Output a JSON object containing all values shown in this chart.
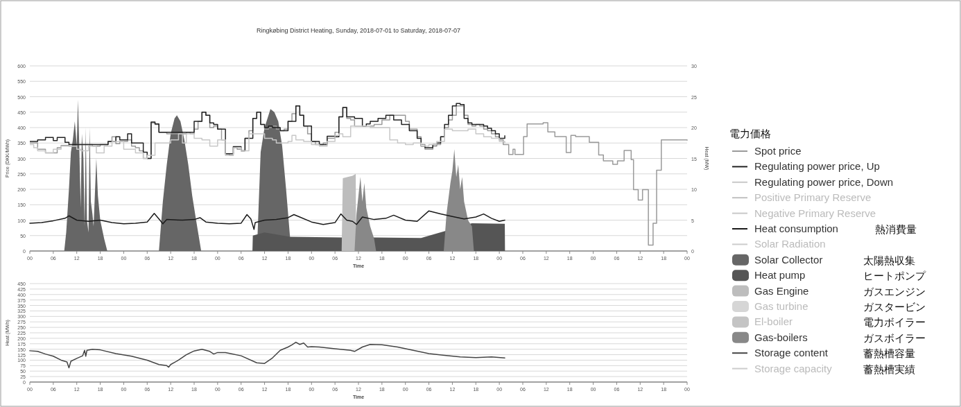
{
  "chart_data": [
    {
      "type": "line",
      "title": "Ringkøbing District Heating, Sunday, 2018-07-01 to Saturday, 2018-07-07",
      "xlabel": "Time",
      "ylabel": "Price (DKK/MWh)",
      "y2label": "Heat (MW)",
      "xlim": [
        0,
        168
      ],
      "xticks": [
        {
          "value": 0,
          "label": "00"
        },
        {
          "value": 6,
          "label": "06"
        },
        {
          "value": 12,
          "label": "12"
        },
        {
          "value": 18,
          "label": "18"
        },
        {
          "value": 24,
          "label": "00"
        },
        {
          "value": 30,
          "label": "06"
        },
        {
          "value": 36,
          "label": "12"
        },
        {
          "value": 42,
          "label": "18"
        },
        {
          "value": 48,
          "label": "00"
        },
        {
          "value": 54,
          "label": "06"
        },
        {
          "value": 60,
          "label": "12"
        },
        {
          "value": 66,
          "label": "18"
        },
        {
          "value": 72,
          "label": "00"
        },
        {
          "value": 78,
          "label": "06"
        },
        {
          "value": 84,
          "label": "12"
        },
        {
          "value": 90,
          "label": "18"
        },
        {
          "value": 96,
          "label": "00"
        },
        {
          "value": 102,
          "label": "06"
        },
        {
          "value": 108,
          "label": "12"
        },
        {
          "value": 114,
          "label": "18"
        },
        {
          "value": 120,
          "label": "00"
        },
        {
          "value": 126,
          "label": "06"
        },
        {
          "value": 132,
          "label": "12"
        },
        {
          "value": 138,
          "label": "18"
        },
        {
          "value": 144,
          "label": "00"
        },
        {
          "value": 150,
          "label": "06"
        },
        {
          "value": 156,
          "label": "12"
        },
        {
          "value": 162,
          "label": "18"
        },
        {
          "value": 168,
          "label": "00"
        }
      ],
      "ylim": [
        0,
        600
      ],
      "yticks": [
        0,
        50,
        100,
        150,
        200,
        250,
        300,
        350,
        400,
        450,
        500,
        550,
        600
      ],
      "y2lim": [
        0,
        30
      ],
      "y2ticks": [
        0,
        5,
        10,
        15,
        20,
        25,
        30
      ],
      "grid": "y",
      "legend": "right",
      "legend_title": "電力価格",
      "annotations": [
        "熱消費量",
        "太陽熱収集",
        "ヒートポンプ",
        "ガスエンジン",
        "ガスタービン",
        "電力ボイラー",
        "ガスボイラー"
      ],
      "series": [
        {
          "name": "Spot price",
          "type": "step",
          "color": "#9a9a9a",
          "x": [
            0,
            2,
            4,
            6,
            7,
            8,
            10,
            12,
            14,
            16,
            18,
            20,
            21,
            22,
            23,
            25,
            26,
            27,
            28,
            29,
            30,
            31,
            32,
            33,
            35,
            38,
            40,
            41,
            42,
            43,
            44,
            45,
            46,
            47,
            48,
            49,
            50,
            51,
            52,
            53,
            54,
            55,
            56,
            57,
            58,
            59,
            60,
            61,
            62,
            63,
            64,
            65,
            66,
            67,
            68,
            69,
            70,
            71,
            72,
            73,
            74,
            75,
            76,
            77,
            78,
            79,
            80,
            81,
            82,
            83,
            84,
            88,
            90,
            92,
            94,
            96,
            97,
            99,
            100,
            101,
            103,
            104,
            105,
            106,
            107,
            108,
            109,
            110,
            111,
            112,
            113,
            114,
            115,
            116,
            117,
            118,
            119,
            120,
            121,
            122.4,
            123.5,
            124,
            126.2,
            127.1,
            131.2,
            132.4,
            134.2,
            137.1,
            138.3,
            139.5,
            143,
            145.4,
            146.6,
            149,
            150.2,
            151.9,
            153.7,
            154.3,
            155.5,
            156.6,
            158.1,
            159.3,
            160.2,
            161.4,
            168
          ],
          "values": [
            350,
            330,
            318,
            318,
            335,
            342,
            340,
            345,
            345,
            340,
            345,
            355,
            370,
            348,
            355,
            360,
            340,
            335,
            325,
            300,
            300,
            415,
            410,
            385,
            380,
            380,
            385,
            380,
            395,
            420,
            450,
            440,
            400,
            405,
            395,
            360,
            315,
            310,
            335,
            330,
            325,
            365,
            390,
            430,
            450,
            410,
            395,
            400,
            405,
            395,
            390,
            395,
            420,
            445,
            470,
            440,
            405,
            380,
            355,
            345,
            345,
            350,
            365,
            365,
            385,
            435,
            465,
            430,
            425,
            405,
            405,
            410,
            425,
            440,
            440,
            420,
            395,
            370,
            345,
            330,
            340,
            345,
            370,
            400,
            425,
            440,
            470,
            470,
            440,
            410,
            405,
            410,
            405,
            395,
            390,
            380,
            370,
            360,
            345,
            313,
            330,
            313,
            371,
            412,
            416,
            386,
            371,
            319,
            375,
            371,
            352,
            311,
            292,
            281,
            292,
            326,
            296,
            199,
            165,
            199,
            19,
            90,
            262,
            360,
            358
          ]
        },
        {
          "name": "Regulating power price, Up",
          "type": "step",
          "color": "#222222",
          "x": [
            0,
            2,
            4,
            6,
            7,
            9,
            10,
            12,
            16,
            20,
            22,
            23,
            25,
            26,
            29,
            30,
            31,
            32,
            33,
            36,
            40,
            42,
            44,
            45,
            46,
            47,
            48,
            50,
            52,
            54,
            55,
            57,
            58,
            59,
            60,
            61,
            62,
            64,
            66,
            68,
            69,
            70,
            72,
            74,
            76,
            78,
            79,
            80,
            81,
            83,
            85,
            86,
            87,
            89,
            91,
            93,
            95,
            97,
            99,
            100,
            101,
            103,
            104,
            105,
            106,
            107,
            108,
            109,
            110,
            111,
            112,
            113,
            115,
            116,
            117,
            118,
            119,
            120,
            121.4
          ],
          "values": [
            355,
            360,
            368,
            358,
            368,
            352,
            345,
            345,
            345,
            355,
            370,
            360,
            380,
            350,
            320,
            300,
            418,
            412,
            385,
            385,
            385,
            420,
            450,
            440,
            415,
            410,
            395,
            315,
            338,
            325,
            365,
            430,
            450,
            410,
            400,
            405,
            400,
            390,
            420,
            470,
            440,
            405,
            355,
            345,
            372,
            370,
            435,
            465,
            435,
            430,
            405,
            412,
            420,
            430,
            440,
            425,
            410,
            390,
            365,
            340,
            335,
            345,
            350,
            370,
            410,
            440,
            470,
            478,
            475,
            430,
            415,
            410,
            410,
            405,
            398,
            390,
            380,
            365,
            375
          ]
        },
        {
          "name": "Regulating power price, Down",
          "type": "step",
          "color": "#c8c8c8",
          "x": [
            0,
            1,
            2,
            4,
            6,
            8,
            10,
            12,
            13,
            15,
            17,
            19,
            21,
            24,
            27,
            29,
            30,
            32,
            36,
            38,
            39,
            40,
            42,
            44,
            46,
            48,
            50,
            52,
            54,
            56,
            59,
            60,
            62,
            63,
            66,
            67,
            68,
            70,
            72,
            74,
            76,
            78,
            79,
            80,
            82,
            84,
            85,
            87,
            90,
            92,
            94,
            96,
            98,
            100,
            102,
            104,
            106,
            108,
            110,
            112,
            114,
            116,
            118,
            120,
            121.4
          ],
          "values": [
            345,
            335,
            325,
            318,
            330,
            340,
            340,
            330,
            325,
            340,
            318,
            340,
            355,
            330,
            318,
            300,
            310,
            350,
            360,
            380,
            350,
            380,
            365,
            360,
            340,
            360,
            310,
            335,
            325,
            380,
            380,
            365,
            360,
            350,
            355,
            375,
            360,
            355,
            345,
            340,
            355,
            375,
            380,
            370,
            405,
            405,
            405,
            400,
            400,
            360,
            350,
            345,
            350,
            340,
            345,
            355,
            395,
            390,
            390,
            395,
            380,
            370,
            365,
            355,
            350
          ]
        },
        {
          "name": "Positive Primary Reserve",
          "type": "line",
          "color": "#c0c0c0"
        },
        {
          "name": "Negative Primary Reserve",
          "type": "line",
          "color": "#c8c8c8"
        },
        {
          "name": "Heat consumption",
          "type": "line",
          "axis": "y2",
          "color": "#1a1a1a",
          "x": [
            0,
            3,
            6,
            9,
            10,
            12,
            15,
            18,
            21,
            24,
            27,
            30,
            31.8,
            33,
            34,
            35,
            39,
            42,
            43.5,
            45,
            48,
            51,
            54,
            55.5,
            56.5,
            57.3,
            57.6,
            60,
            63,
            66,
            67.5,
            69,
            72,
            75,
            78,
            79.5,
            81,
            82.5,
            83.5,
            85,
            88,
            91,
            93,
            96,
            99,
            102,
            105,
            108,
            111,
            114,
            116,
            118,
            120,
            121.4
          ],
          "values": [
            4.5,
            4.6,
            4.9,
            5.3,
            5.7,
            5.0,
            4.8,
            5.0,
            4.6,
            4.4,
            4.5,
            4.7,
            6.1,
            5.2,
            4.4,
            5.1,
            5.0,
            5.1,
            5.4,
            4.7,
            4.5,
            4.4,
            4.5,
            5.9,
            5.2,
            3.5,
            4.6,
            5.0,
            5.1,
            5.4,
            5.9,
            5.5,
            4.7,
            4.3,
            4.6,
            6.0,
            5.0,
            4.8,
            4.3,
            5.5,
            5.1,
            5.3,
            5.8,
            5.0,
            4.8,
            6.5,
            6.0,
            5.6,
            5.2,
            5.5,
            6.0,
            5.3,
            4.8,
            5.0
          ]
        },
        {
          "name": "Solar Radiation",
          "type": "line",
          "color": "#cccccc"
        },
        {
          "name": "Solar Collector",
          "type": "area",
          "axis": "y2",
          "color": "#666666",
          "x": [
            8.8,
            9.3,
            10,
            10.5,
            11,
            11.5,
            12,
            12.3,
            12.6,
            13,
            13.3,
            13.7,
            14,
            14.3,
            14.6,
            15,
            15.3,
            15.6,
            16,
            16.3,
            17,
            17.4,
            18,
            19,
            19.8,
            26,
            33,
            34,
            35,
            36,
            37,
            37.6,
            38.5,
            39.5,
            40.5,
            41.5,
            42.5,
            43.8,
            50,
            58.2,
            59,
            60,
            61,
            61.5,
            62.5,
            63.5,
            64.5,
            65.5,
            66.5
          ],
          "values": [
            0,
            3,
            10,
            16,
            18,
            21,
            17,
            24.5,
            18,
            7,
            19,
            15,
            4,
            20,
            5,
            3,
            20,
            8,
            6,
            4,
            15,
            9,
            5,
            2,
            0,
            null,
            0,
            8,
            14,
            19,
            21.5,
            22,
            21,
            18,
            14,
            9,
            5,
            0,
            null,
            2.5,
            16,
            20,
            22,
            23,
            22.5,
            21,
            17,
            10,
            2.3
          ]
        },
        {
          "name": "Heat pump",
          "type": "area",
          "axis": "y2",
          "color": "#555555",
          "x": [
            56.9,
            57,
            60,
            66.5,
            79.7,
            83.3,
            88,
            100,
            113,
            121.4,
            121.45
          ],
          "values": [
            0,
            2.5,
            3,
            2.3,
            2.2,
            2.2,
            2.2,
            2.1,
            4.5,
            4.4,
            0
          ]
        },
        {
          "name": "Gas Engine",
          "type": "area",
          "axis": "y2",
          "color": "#bdbdbd",
          "x": [
            79.7,
            80,
            82.5,
            83.3,
            83.4
          ],
          "values": [
            0,
            11.8,
            12.2,
            12.5,
            0
          ]
        },
        {
          "name": "Gas turbine",
          "type": "area",
          "axis": "y2",
          "color": "#d6d6d6"
        },
        {
          "name": "El-boiler",
          "type": "area",
          "axis": "y2",
          "color": "#c4c4c4"
        },
        {
          "name": "Gas-boilers",
          "type": "area",
          "axis": "y2",
          "color": "#888888",
          "x": [
            83,
            83.5,
            84,
            84.5,
            85,
            85.5,
            86,
            87,
            88,
            88.5,
            95,
            105.8,
            106.5,
            107.5,
            108,
            108.5,
            109,
            109.5,
            110,
            110.5,
            111,
            112,
            113,
            113.5
          ],
          "values": [
            0,
            6,
            9,
            12,
            8,
            11,
            7,
            4,
            2,
            0,
            null,
            0,
            6,
            11,
            13,
            16.5,
            12,
            14,
            10,
            12,
            8,
            5,
            4,
            0
          ]
        }
      ]
    },
    {
      "type": "line",
      "xlabel": "Time",
      "ylabel": "Heat (MWh)",
      "legend": "right",
      "annotations": [
        "蓄熱槽容量",
        "蓄熱槽実績"
      ],
      "xlim": [
        0,
        168
      ],
      "xticks": [
        {
          "value": 0,
          "label": "00"
        },
        {
          "value": 6,
          "label": "06"
        },
        {
          "value": 12,
          "label": "12"
        },
        {
          "value": 18,
          "label": "18"
        },
        {
          "value": 24,
          "label": "00"
        },
        {
          "value": 30,
          "label": "06"
        },
        {
          "value": 36,
          "label": "12"
        },
        {
          "value": 42,
          "label": "18"
        },
        {
          "value": 48,
          "label": "00"
        },
        {
          "value": 54,
          "label": "06"
        },
        {
          "value": 60,
          "label": "12"
        },
        {
          "value": 66,
          "label": "18"
        },
        {
          "value": 72,
          "label": "00"
        },
        {
          "value": 78,
          "label": "06"
        },
        {
          "value": 84,
          "label": "12"
        },
        {
          "value": 90,
          "label": "18"
        },
        {
          "value": 96,
          "label": "00"
        },
        {
          "value": 102,
          "label": "06"
        },
        {
          "value": 108,
          "label": "12"
        },
        {
          "value": 114,
          "label": "18"
        },
        {
          "value": 120,
          "label": "00"
        },
        {
          "value": 126,
          "label": "06"
        },
        {
          "value": 132,
          "label": "12"
        },
        {
          "value": 138,
          "label": "18"
        },
        {
          "value": 144,
          "label": "00"
        },
        {
          "value": 150,
          "label": "06"
        },
        {
          "value": 156,
          "label": "12"
        },
        {
          "value": 162,
          "label": "18"
        },
        {
          "value": 168,
          "label": "00"
        }
      ],
      "ylim": [
        0,
        450
      ],
      "yticks": [
        0,
        25,
        50,
        75,
        100,
        125,
        150,
        175,
        200,
        225,
        250,
        275,
        300,
        325,
        350,
        375,
        400,
        425,
        450
      ],
      "grid": "y",
      "series": [
        {
          "name": "Storage content",
          "type": "line",
          "color": "#444444",
          "x": [
            0,
            2,
            4,
            6,
            8,
            9.5,
            10,
            10.5,
            12,
            13.5,
            14,
            14.3,
            14.6,
            16,
            18,
            22,
            26,
            30,
            33,
            35,
            35.5,
            36,
            38,
            40,
            42,
            44,
            46,
            47,
            48,
            50,
            54,
            58,
            60,
            62,
            64,
            66,
            67,
            68,
            69,
            70,
            71,
            72,
            74,
            78,
            82,
            83,
            85,
            87,
            90,
            94,
            98,
            102,
            106,
            110,
            114,
            118,
            121.4
          ],
          "values": [
            143,
            140,
            128,
            118,
            100,
            92,
            65,
            95,
            108,
            120,
            145,
            118,
            145,
            150,
            147,
            130,
            118,
            100,
            80,
            75,
            68,
            80,
            100,
            125,
            142,
            150,
            140,
            128,
            135,
            135,
            120,
            88,
            85,
            110,
            145,
            160,
            170,
            182,
            172,
            178,
            160,
            162,
            160,
            152,
            145,
            140,
            160,
            172,
            170,
            160,
            145,
            130,
            122,
            115,
            112,
            115,
            110
          ]
        },
        {
          "name": "Storage capacity",
          "type": "line",
          "color": "#cccccc"
        }
      ]
    }
  ]
}
